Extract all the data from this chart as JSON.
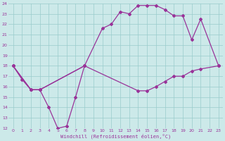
{
  "xlabel": "Windchill (Refroidissement éolien,°C)",
  "xlim": [
    -0.5,
    23.5
  ],
  "ylim": [
    12,
    24
  ],
  "xticks": [
    0,
    1,
    2,
    3,
    4,
    5,
    6,
    7,
    8,
    9,
    10,
    11,
    12,
    13,
    14,
    15,
    16,
    17,
    18,
    19,
    20,
    21,
    22,
    23
  ],
  "yticks": [
    12,
    13,
    14,
    15,
    16,
    17,
    18,
    19,
    20,
    21,
    22,
    23,
    24
  ],
  "bg_color": "#cce9e9",
  "line_color": "#993399",
  "grid_color": "#99cccc",
  "line1_x": [
    0,
    1,
    2,
    3,
    4,
    5,
    6,
    7,
    8
  ],
  "line1_y": [
    18.0,
    16.7,
    15.7,
    15.7,
    14.0,
    12.0,
    12.2,
    15.0,
    18.0
  ],
  "line2_x": [
    0,
    2,
    3,
    8,
    10,
    11,
    12,
    13,
    14,
    15,
    16,
    17,
    18,
    19,
    20,
    21,
    23
  ],
  "line2_y": [
    18.0,
    15.7,
    15.7,
    18.0,
    21.6,
    22.0,
    23.2,
    23.0,
    23.8,
    23.8,
    23.8,
    23.4,
    22.8,
    22.8,
    20.5,
    22.5,
    18.0
  ],
  "line3_x": [
    0,
    2,
    3,
    8,
    14,
    15,
    16,
    17,
    18,
    19,
    20,
    21,
    23
  ],
  "line3_y": [
    18.0,
    15.7,
    15.7,
    18.0,
    15.6,
    15.6,
    16.0,
    16.5,
    17.0,
    17.0,
    17.5,
    17.7,
    18.0
  ]
}
